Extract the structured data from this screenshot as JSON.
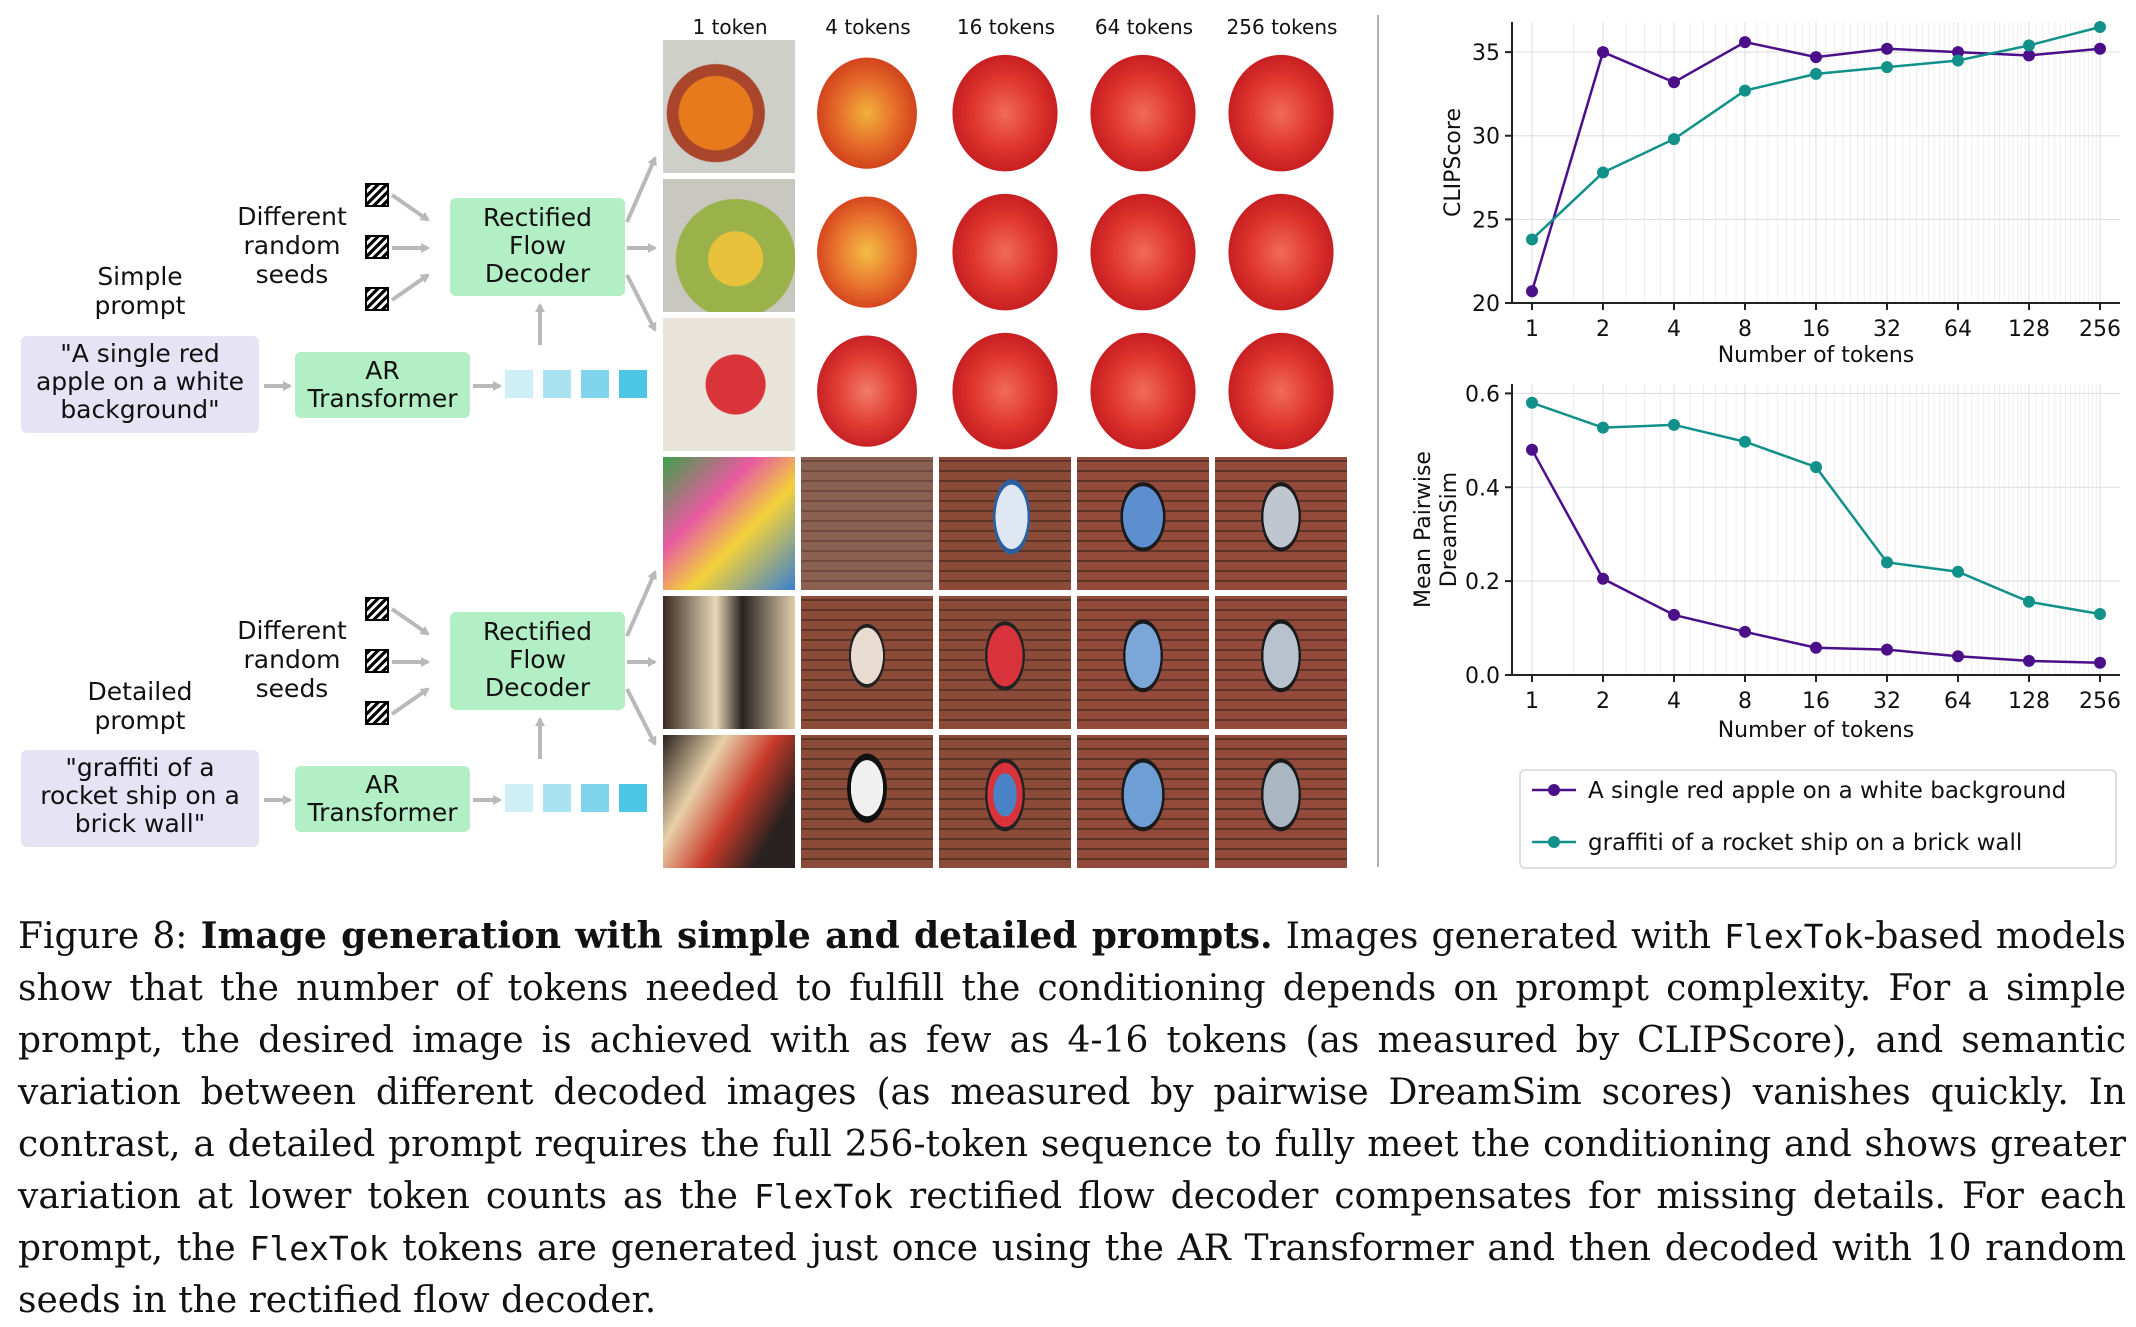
{
  "diagram": {
    "top": {
      "prompt_type": "Simple\nprompt",
      "prompt_text": "\"A single red\napple on a white\nbackground\"",
      "seeds_label": "Different\nrandom\nseeds",
      "decoder_label": "Rectified\nFlow\nDecoder",
      "transformer_label": "AR\nTransformer"
    },
    "bottom": {
      "prompt_type": "Detailed\nprompt",
      "prompt_text": "\"graffiti of a\nrocket ship on a\nbrick wall\"",
      "seeds_label": "Different\nrandom\nseeds",
      "decoder_label": "Rectified\nFlow\nDecoder",
      "transformer_label": "AR\nTransformer"
    },
    "token_colors": [
      "#cfeef6",
      "#a9e3f2",
      "#7fd6ec",
      "#4cc6e4"
    ]
  },
  "grid": {
    "columns": [
      "1 token",
      "4 tokens",
      "16 tokens",
      "64 tokens",
      "256 tokens"
    ]
  },
  "colors": {
    "purple": "#4b0f8a",
    "teal": "#12908a",
    "grid": "#dddddd"
  },
  "chart_data": [
    {
      "type": "line",
      "title": "",
      "xlabel": "Number of tokens",
      "ylabel": "CLIPScore",
      "x_ticks": [
        "1",
        "2",
        "4",
        "8",
        "16",
        "32",
        "64",
        "128",
        "256"
      ],
      "y_ticks": [
        "20",
        "25",
        "30",
        "35"
      ],
      "ylim": [
        20,
        37
      ],
      "series": [
        {
          "name": "A single red apple on a white background",
          "color": "#4b0f8a",
          "values": [
            20.7,
            35.0,
            33.2,
            35.6,
            34.7,
            35.2,
            35.0,
            34.8,
            35.2
          ]
        },
        {
          "name": "graffiti of a rocket ship on a brick wall",
          "color": "#12908a",
          "values": [
            23.8,
            27.8,
            29.8,
            32.7,
            33.7,
            34.1,
            34.5,
            35.4,
            36.5
          ]
        }
      ]
    },
    {
      "type": "line",
      "title": "",
      "xlabel": "Number of tokens",
      "ylabel": "Mean Pairwise\nDreamSim",
      "x_ticks": [
        "1",
        "2",
        "4",
        "8",
        "16",
        "32",
        "64",
        "128",
        "256"
      ],
      "y_ticks": [
        "0.0",
        "0.2",
        "0.4",
        "0.6"
      ],
      "ylim": [
        0,
        0.6
      ],
      "series": [
        {
          "name": "A single red apple on a white background",
          "color": "#4b0f8a",
          "values": [
            0.48,
            0.205,
            0.128,
            0.092,
            0.058,
            0.054,
            0.04,
            0.03,
            0.026
          ]
        },
        {
          "name": "graffiti of a rocket ship on a brick wall",
          "color": "#12908a",
          "values": [
            0.58,
            0.527,
            0.533,
            0.497,
            0.443,
            0.24,
            0.22,
            0.156,
            0.13
          ]
        }
      ]
    }
  ],
  "legend": {
    "items": [
      "A single red apple on a white background",
      "graffiti of a rocket ship on a brick wall"
    ]
  },
  "caption": {
    "prefix": "Figure 8: ",
    "bold": "Image generation with simple and detailed prompts.",
    "seg1": " Images generated with ",
    "mono1": "FlexTok",
    "seg2": "-based models show that the number of tokens needed to fulfill the conditioning depends on prompt complexity.  For a simple prompt, the desired image is achieved with as few as 4-16 tokens (as measured by CLIPScore), and semantic variation between different decoded images (as measured by pairwise DreamSim scores) vanishes quickly. In contrast, a detailed prompt requires the full 256-token sequence to fully meet the conditioning and shows greater variation at lower token counts as the ",
    "mono2": "FlexTok",
    "seg3": " rectified flow decoder compensates for missing details. For each prompt, the ",
    "mono3": "FlexTok",
    "seg4": " tokens are generated just once using the AR Transformer and then decoded with 10 random seeds in the rectified flow decoder."
  }
}
